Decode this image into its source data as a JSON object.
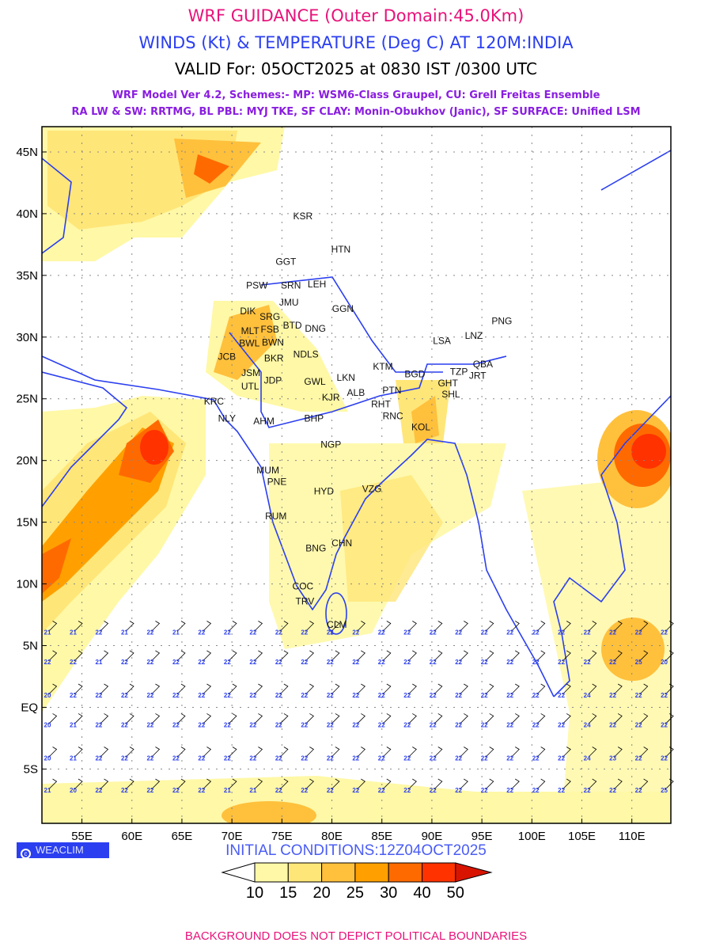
{
  "header": {
    "title": "WRF GUIDANCE (Outer Domain:45.0Km)",
    "subtitle": "WINDS (Kt) & TEMPERATURE (Deg C) AT 120M:INDIA",
    "valid": "VALID For: 05OCT2025 at 0830 IST /0300 UTC",
    "model_line1": "WRF Model Ver 4.2, Schemes:- MP: WSM6-Class Graupel, CU: Grell Freitas Ensemble",
    "model_line2": "RA LW & SW: RRTMG, BL PBL: MYJ TKE, SF CLAY: Monin-Obukhov (Janic), SF SURFACE: Unified LSM"
  },
  "map": {
    "lon_range": [
      51.0,
      113.9
    ],
    "lat_range": [
      -9.4,
      47.05
    ],
    "lon_ticks": [
      {
        "v": 55,
        "l": "55E"
      },
      {
        "v": 60,
        "l": "60E"
      },
      {
        "v": 65,
        "l": "65E"
      },
      {
        "v": 70,
        "l": "70E"
      },
      {
        "v": 75,
        "l": "75E"
      },
      {
        "v": 80,
        "l": "80E"
      },
      {
        "v": 85,
        "l": "85E"
      },
      {
        "v": 90,
        "l": "90E"
      },
      {
        "v": 95,
        "l": "95E"
      },
      {
        "v": 100,
        "l": "100E"
      },
      {
        "v": 105,
        "l": "105E"
      },
      {
        "v": 110,
        "l": "110E"
      }
    ],
    "lat_ticks": [
      {
        "v": 45,
        "l": "45N"
      },
      {
        "v": 40,
        "l": "40N"
      },
      {
        "v": 35,
        "l": "35N"
      },
      {
        "v": 30,
        "l": "30N"
      },
      {
        "v": 25,
        "l": "25N"
      },
      {
        "v": 20,
        "l": "20N"
      },
      {
        "v": 15,
        "l": "15N"
      },
      {
        "v": 10,
        "l": "10N"
      },
      {
        "v": 5,
        "l": "5N"
      },
      {
        "v": 0,
        "l": "EQ"
      },
      {
        "v": -5,
        "l": "5S"
      }
    ],
    "stations": [
      {
        "n": "KSR",
        "lon": 77.1,
        "lat": 39.8
      },
      {
        "n": "HTN",
        "lon": 80.9,
        "lat": 37.1
      },
      {
        "n": "GGT",
        "lon": 75.4,
        "lat": 36.1
      },
      {
        "n": "PSW",
        "lon": 72.5,
        "lat": 34.2
      },
      {
        "n": "SRN",
        "lon": 75.9,
        "lat": 34.2
      },
      {
        "n": "LEH",
        "lon": 78.5,
        "lat": 34.3
      },
      {
        "n": "JMU",
        "lon": 75.7,
        "lat": 32.8
      },
      {
        "n": "GGN",
        "lon": 81.1,
        "lat": 32.3
      },
      {
        "n": "DIK",
        "lon": 71.6,
        "lat": 32.1
      },
      {
        "n": "SRG",
        "lon": 73.8,
        "lat": 32.3
      },
      {
        "n": "FSB",
        "lon": 73.8,
        "lat": 31.6
      },
      {
        "n": "PNG",
        "lon": 97.0,
        "lat": 31.3
      },
      {
        "n": "MLT",
        "lon": 72.3,
        "lat": 30.5
      },
      {
        "n": "BWN",
        "lon": 74.1,
        "lat": 30.2
      },
      {
        "n": "BTD",
        "lon": 75.1,
        "lat": 30.3
      },
      {
        "n": "DNG",
        "lon": 77.4,
        "lat": 30.7
      },
      {
        "n": "LSA",
        "lon": 91.0,
        "lat": 29.7
      },
      {
        "n": "LNZ",
        "lon": 94.2,
        "lat": 30.1
      },
      {
        "n": "BWL",
        "lon": 72.7,
        "lat": 29.5
      },
      {
        "n": "JCB",
        "lon": 69.5,
        "lat": 28.4
      },
      {
        "n": "BKR",
        "lon": 74.2,
        "lat": 28.3
      },
      {
        "n": "NDLS",
        "lon": 77.4,
        "lat": 28.6
      },
      {
        "n": "KTM",
        "lon": 85.1,
        "lat": 27.6
      },
      {
        "n": "BGD",
        "lon": 88.3,
        "lat": 27.0
      },
      {
        "n": "QBA",
        "lon": 95.1,
        "lat": 27.8
      },
      {
        "n": "TZP",
        "lon": 92.7,
        "lat": 27.2
      },
      {
        "n": "JRT",
        "lon": 94.1,
        "lat": 27.2
      },
      {
        "n": "GHT",
        "lon": 91.6,
        "lat": 26.6
      },
      {
        "n": "SHL",
        "lon": 91.9,
        "lat": 26.0
      },
      {
        "n": "JSM",
        "lon": 71.9,
        "lat": 27.1
      },
      {
        "n": "JDP",
        "lon": 74.1,
        "lat": 26.5
      },
      {
        "n": "UTL",
        "lon": 72.3,
        "lat": 26.0
      },
      {
        "n": "GWL",
        "lon": 78.3,
        "lat": 26.4
      },
      {
        "n": "LKN",
        "lon": 81.4,
        "lat": 26.7
      },
      {
        "n": "ALB",
        "lon": 82.4,
        "lat": 25.5
      },
      {
        "n": "PTN",
        "lon": 86.0,
        "lat": 25.7
      },
      {
        "n": "RHT",
        "lon": 84.9,
        "lat": 24.9
      },
      {
        "n": "KJR",
        "lon": 79.9,
        "lat": 25.1
      },
      {
        "n": "KRC",
        "lon": 68.2,
        "lat": 24.8
      },
      {
        "n": "NLY",
        "lon": 69.5,
        "lat": 23.4
      },
      {
        "n": "AHM",
        "lon": 73.2,
        "lat": 23.2
      },
      {
        "n": "BHP",
        "lon": 78.2,
        "lat": 23.4
      },
      {
        "n": "RNC",
        "lon": 86.1,
        "lat": 23.6
      },
      {
        "n": "KOL",
        "lon": 88.9,
        "lat": 22.7
      },
      {
        "n": "NGP",
        "lon": 79.9,
        "lat": 21.3
      },
      {
        "n": "MUM",
        "lon": 73.6,
        "lat": 19.2
      },
      {
        "n": "PNE",
        "lon": 74.5,
        "lat": 18.6
      },
      {
        "n": "HYD",
        "lon": 79.2,
        "lat": 17.5
      },
      {
        "n": "VZG",
        "lon": 84.0,
        "lat": 17.7
      },
      {
        "n": "RUM",
        "lon": 74.4,
        "lat": 15.5
      },
      {
        "n": "BNG",
        "lon": 78.4,
        "lat": 12.9
      },
      {
        "n": "CHN",
        "lon": 81.0,
        "lat": 13.3
      },
      {
        "n": "COC",
        "lon": 77.1,
        "lat": 9.8
      },
      {
        "n": "TRV",
        "lon": 77.3,
        "lat": 8.6
      },
      {
        "n": "CLM",
        "lon": 80.5,
        "lat": 6.7
      }
    ],
    "temperature_rows": [
      {
        "lat": 5.9,
        "lon0": 51.2,
        "vals": [
          21,
          21,
          22,
          21,
          22,
          21,
          22,
          22,
          22,
          22,
          22,
          22,
          22,
          22,
          22,
          22,
          22,
          22,
          22,
          22,
          22,
          22,
          22,
          22,
          22
        ]
      },
      {
        "lat": 3.5,
        "lon0": 51.2,
        "vals": [
          22,
          22,
          21,
          22,
          22,
          22,
          22,
          22,
          22,
          22,
          22,
          22,
          22,
          22,
          22,
          22,
          22,
          22,
          22,
          22,
          22,
          22,
          22,
          25,
          20
        ]
      },
      {
        "lat": 0.8,
        "lon0": 51.2,
        "vals": [
          20,
          22,
          22,
          22,
          22,
          22,
          22,
          22,
          22,
          22,
          22,
          22,
          22,
          22,
          22,
          22,
          22,
          22,
          22,
          22,
          22,
          24,
          22,
          22,
          22
        ]
      },
      {
        "lat": -1.6,
        "lon0": 51.2,
        "vals": [
          20,
          21,
          22,
          22,
          22,
          22,
          22,
          22,
          22,
          22,
          22,
          22,
          22,
          22,
          22,
          22,
          22,
          22,
          22,
          22,
          22,
          24,
          22,
          22,
          22
        ]
      },
      {
        "lat": -4.3,
        "lon0": 51.2,
        "vals": [
          20,
          21,
          22,
          22,
          22,
          22,
          22,
          22,
          22,
          22,
          22,
          22,
          22,
          22,
          22,
          22,
          22,
          22,
          22,
          22,
          22,
          24,
          23,
          22,
          22
        ]
      },
      {
        "lat": -6.9,
        "lon0": 51.2,
        "vals": [
          21,
          20,
          22,
          22,
          22,
          22,
          22,
          21,
          21,
          22,
          22,
          22,
          22,
          22,
          22,
          22,
          22,
          22,
          22,
          22,
          22,
          22,
          22,
          22,
          25
        ]
      }
    ]
  },
  "legend": {
    "levels": [
      "10",
      "15",
      "20",
      "25",
      "30",
      "40",
      "50"
    ],
    "colors": [
      "#ffffff",
      "#fff8a6",
      "#ffe678",
      "#ffc03c",
      "#ffa000",
      "#ff6a00",
      "#ff3200",
      "#d81400"
    ]
  },
  "credit": "WEACLIM",
  "credit_icon": "copyright-icon",
  "initial_conditions": "INITIAL CONDITIONS:12Z04OCT2025",
  "footer": "BACKGROUND DOES NOT DEPICT POLITICAL BOUNDARIES"
}
